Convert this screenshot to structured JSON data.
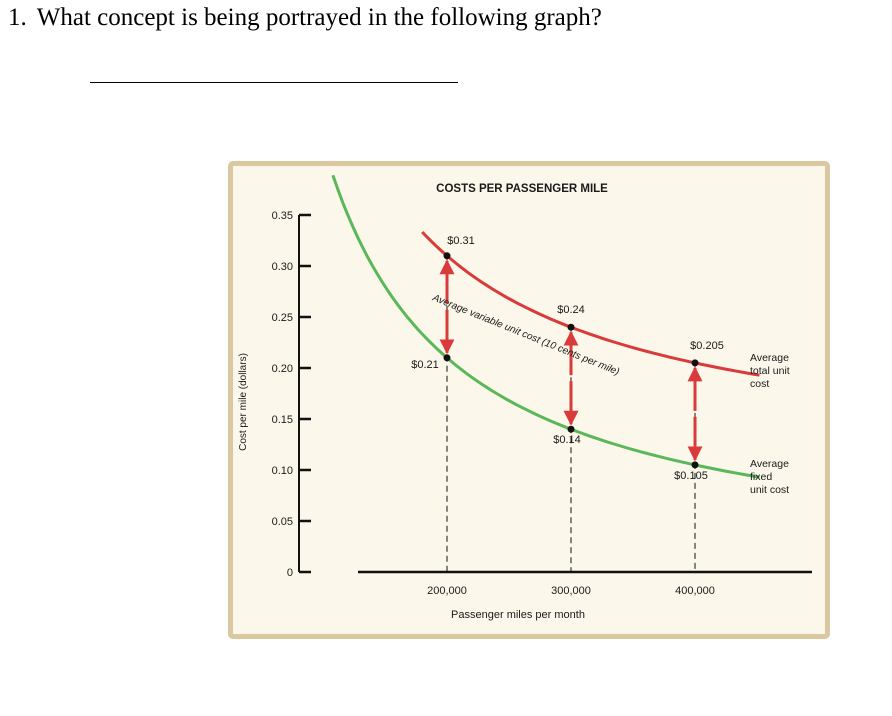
{
  "question": {
    "number": "1.",
    "text": "What concept is being portrayed in the following graph?"
  },
  "chart_data": {
    "type": "line",
    "title": "COSTS PER PASSENGER MILE",
    "xlabel": "Passenger miles per month",
    "ylabel": "Cost per mile (dollars)",
    "x_ticks": [
      "200,000",
      "300,000",
      "400,000"
    ],
    "y_ticks": [
      "0",
      "0.05",
      "0.10",
      "0.15",
      "0.20",
      "0.25",
      "0.30",
      "0.35"
    ],
    "ylim": [
      0,
      0.35
    ],
    "x_points": [
      200000,
      300000,
      400000
    ],
    "series": [
      {
        "name": "Average total unit cost",
        "label_lines": [
          "Average",
          "total unit",
          "cost"
        ],
        "color": "#d93a3a",
        "values": [
          0.31,
          0.24,
          0.205
        ],
        "value_labels": [
          "$0.31",
          "$0.24",
          "$0.205"
        ]
      },
      {
        "name": "Average fixed unit cost",
        "label_lines": [
          "Average",
          "fixed",
          "unit cost"
        ],
        "color": "#5bb85a",
        "values": [
          0.21,
          0.14,
          0.105
        ],
        "value_labels": [
          "$0.21",
          "$0.14",
          "$0.105"
        ]
      }
    ],
    "annotation": "Average variable unit cost (10 cents per mile)"
  }
}
